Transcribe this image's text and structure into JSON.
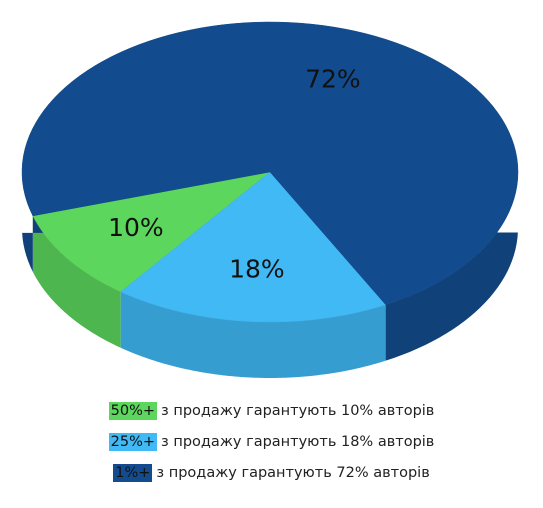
{
  "chart_data": {
    "type": "pie",
    "categories": [
      "50%+",
      "25%+",
      "1%+"
    ],
    "descriptions": [
      "з продажу гарантують 10% авторів",
      "з продажу гарантують 18% авторів",
      "з продажу гарантують 72% авторів"
    ],
    "values": [
      10,
      18,
      72
    ],
    "value_labels": [
      "10%",
      "18%",
      "72%"
    ],
    "colors": [
      "#5cd65c",
      "#40b9f5",
      "#134c8e"
    ],
    "legend": "bottom"
  }
}
